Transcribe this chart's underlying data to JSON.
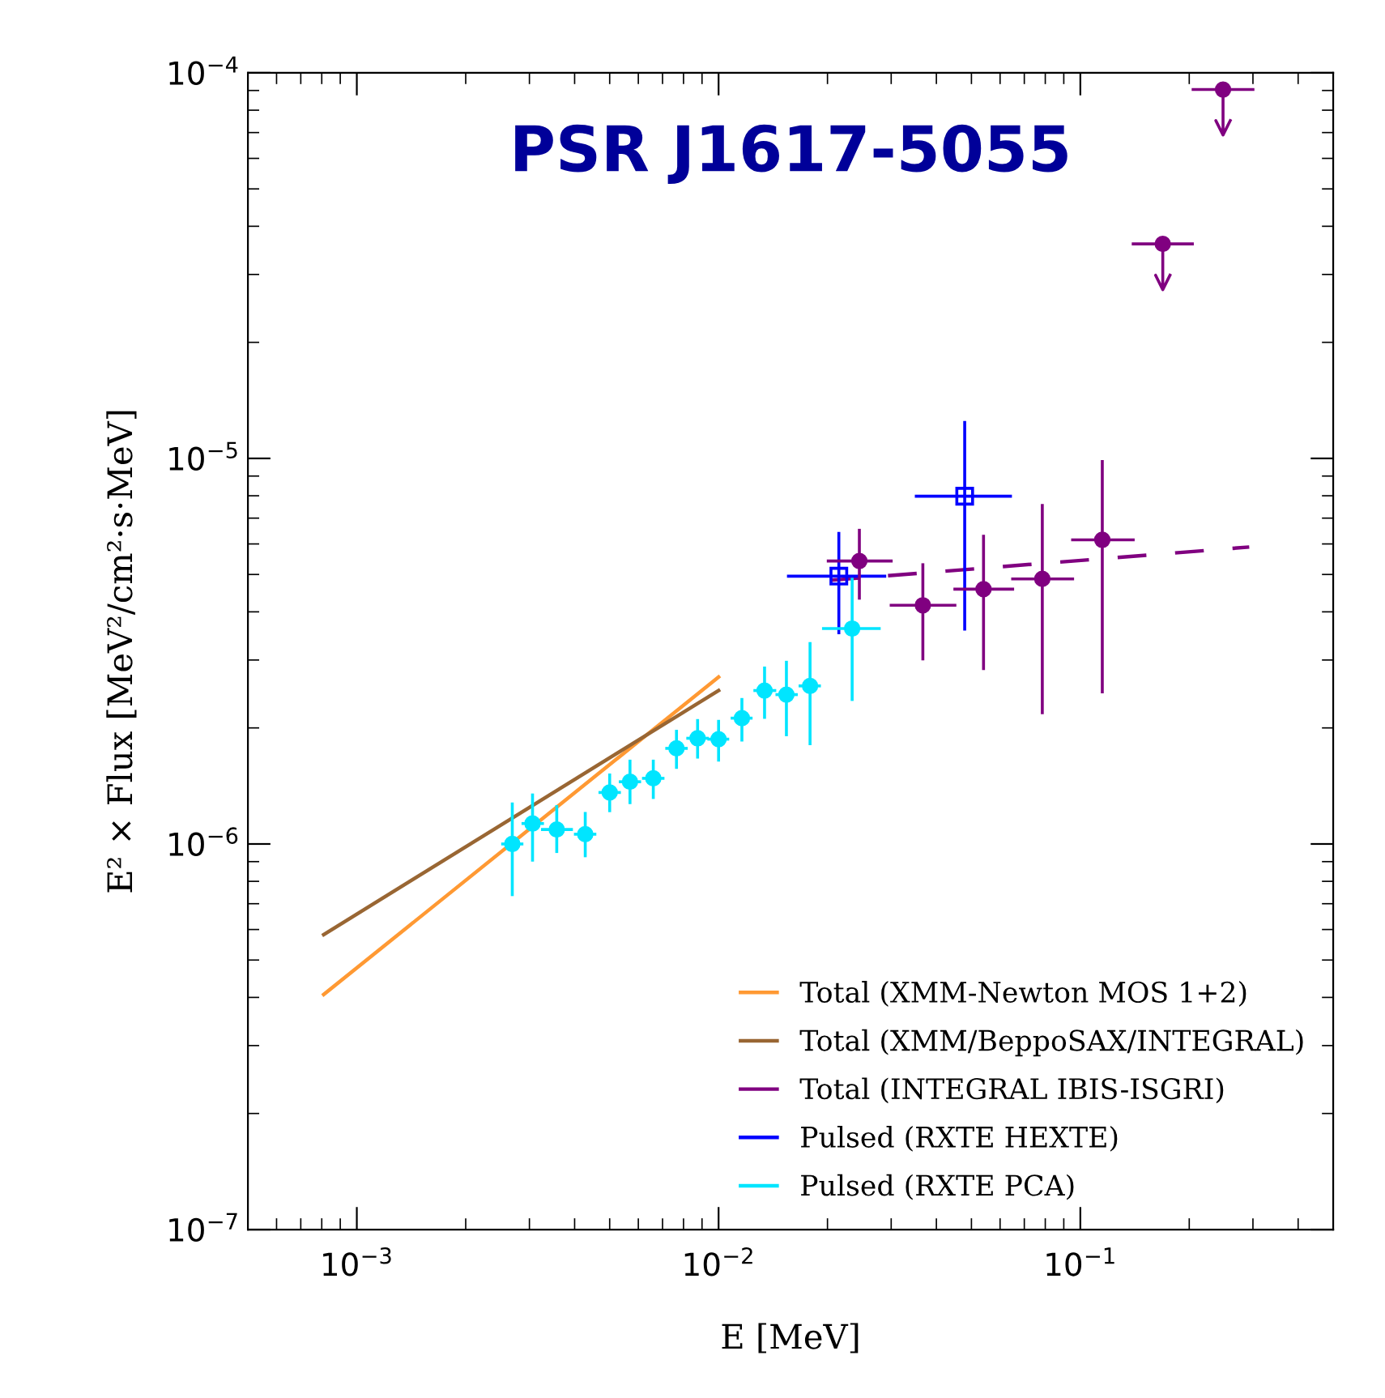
{
  "chart_data": {
    "type": "scatter",
    "title": "PSR J1617-5055",
    "xlabel": "E [MeV]",
    "ylabel": "E² × Flux [MeV²/cm²·s·MeV]",
    "log": "xy",
    "xlim": [
      0.0005,
      0.5
    ],
    "ylim": [
      1e-07,
      0.0001
    ],
    "xticks": [
      {
        "value": 0.001,
        "label": "10$^{−3}$"
      },
      {
        "value": 0.01,
        "label": "10$^{−2}$"
      },
      {
        "value": 0.1,
        "label": "10$^{−1}$"
      }
    ],
    "yticks": [
      {
        "value": 1e-07,
        "label": "10$^{−7}$"
      },
      {
        "value": 1e-06,
        "label": "10$^{−6}$"
      },
      {
        "value": 1e-05,
        "label": "10$^{−5}$"
      },
      {
        "value": 0.0001,
        "label": "10$^{−4}$"
      }
    ],
    "grid": false,
    "legend": "bottom right",
    "series": [
      {
        "name": "Total (XMM-Newton MOS 1+2)",
        "type": "line",
        "color": "#ff9933",
        "line_style": "solid",
        "x": [
          0.00081,
          0.01
        ],
        "values": [
          4.07e-07,
          2.71e-06
        ]
      },
      {
        "name": "Total (XMM/BeppoSAX/INTEGRAL)",
        "type": "line",
        "color": "#996633",
        "line_style": "solid",
        "x": [
          0.00081,
          0.01
        ],
        "values": [
          5.82e-07,
          2.5e-06
        ]
      },
      {
        "name": "Total (INTEGRAL IBIS-ISGRI)",
        "type": "line",
        "color": "#800080",
        "line_style": "dashed",
        "x": [
          0.0204,
          0.293
        ],
        "values": [
          4.83e-06,
          5.89e-06
        ]
      },
      {
        "name": "Pulsed (RXTE HEXTE)",
        "color": "#0000ff",
        "marker": "square",
        "x": [
          0.0215,
          0.0479
        ],
        "values": [
          4.95e-06,
          7.98e-06
        ],
        "errors": [
          [
            3.53e-06,
            6.39e-06
          ],
          [
            3.61e-06,
            1.24e-05
          ]
        ],
        "xerrors": [
          [
            0.0156,
            0.0288
          ],
          [
            0.0352,
            0.0641
          ]
        ]
      },
      {
        "name": "Pulsed (RXTE PCA)",
        "type": "scatter",
        "color": "#00e5ff",
        "marker": "circle",
        "x": [
          0.00269,
          0.00306,
          0.00357,
          0.00428,
          0.005,
          0.00569,
          0.0066,
          0.00765,
          0.00875,
          0.01,
          0.0116,
          0.0134,
          0.0154,
          0.0179,
          0.0234
        ],
        "values": [
          1e-06,
          1.13e-06,
          1.09e-06,
          1.06e-06,
          1.36e-06,
          1.45e-06,
          1.48e-06,
          1.77e-06,
          1.88e-06,
          1.87e-06,
          2.12e-06,
          2.5e-06,
          2.44e-06,
          2.57e-06,
          3.62e-06
        ],
        "errors": [
          [
            7.39e-07,
            1.27e-06
          ],
          [
            9.08e-07,
            1.34e-06
          ],
          [
            9.56e-07,
            1.25e-06
          ],
          [
            9.32e-07,
            1.2e-06
          ],
          [
            1.22e-06,
            1.51e-06
          ],
          [
            1.28e-06,
            1.64e-06
          ],
          [
            1.32e-06,
            1.64e-06
          ],
          [
            1.58e-06,
            1.96e-06
          ],
          [
            1.68e-06,
            2.09e-06
          ],
          [
            1.65e-06,
            2.08e-06
          ],
          [
            1.86e-06,
            2.37e-06
          ],
          [
            2.13e-06,
            2.86e-06
          ],
          [
            1.92e-06,
            2.96e-06
          ],
          [
            1.82e-06,
            3.31e-06
          ],
          [
            2.37e-06,
            4.86e-06
          ]
        ],
        "xerrors": [
          [
            0.00253,
            0.00286
          ],
          [
            0.00288,
            0.00326
          ],
          [
            0.00326,
            0.00392
          ],
          [
            0.00402,
            0.00455
          ],
          [
            0.0047,
            0.00532
          ],
          [
            0.00535,
            0.00605
          ],
          [
            0.0062,
            0.00702
          ],
          [
            0.00719,
            0.00814
          ],
          [
            0.00822,
            0.00931
          ],
          [
            0.0094,
            0.0106
          ],
          [
            0.0109,
            0.0123
          ],
          [
            0.0126,
            0.0143
          ],
          [
            0.0145,
            0.0164
          ],
          [
            0.0168,
            0.019
          ],
          [
            0.0195,
            0.0278
          ]
        ]
      },
      {
        "type": "scatter",
        "color": "#800080",
        "marker": "circle",
        "x": [
          0.0245,
          0.0367,
          0.054,
          0.0785,
          0.115,
          0.169,
          0.248
        ],
        "values": [
          5.42e-06,
          4.16e-06,
          4.58e-06,
          4.87e-06,
          6.15e-06,
          3.6e-05,
          9.05e-05
        ],
        "errors": [
          [
            4.34e-06,
            6.51e-06
          ],
          [
            3.02e-06,
            5.3e-06
          ],
          [
            2.85e-06,
            6.28e-06
          ],
          [
            2.19e-06,
            7.55e-06
          ],
          [
            2.48e-06,
            9.81e-06
          ],
          [
            2.74e-05,
            3.6e-05
          ],
          [
            6.9e-05,
            9.05e-05
          ]
        ],
        "xerrors": [
          [
            0.0201,
            0.03
          ],
          [
            0.03,
            0.045
          ],
          [
            0.045,
            0.065
          ],
          [
            0.065,
            0.0952
          ],
          [
            0.0952,
            0.14
          ],
          [
            0.14,
            0.204
          ],
          [
            0.205,
            0.3
          ]
        ]
      }
    ]
  }
}
